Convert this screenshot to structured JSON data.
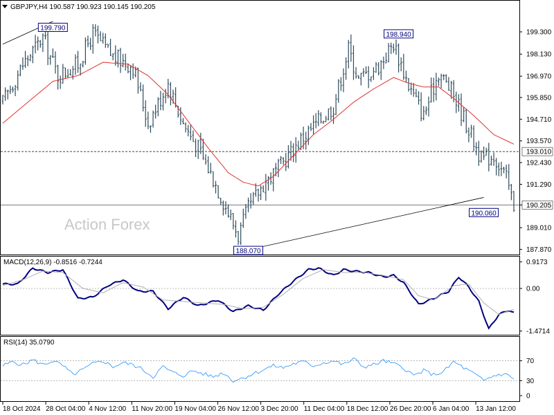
{
  "header": {
    "main": "GBPJPY,H4  190.587 190.923 190.145 190.205",
    "macd": "MACD(12,26,9) -0.8516 -0.7244",
    "rsi": "RSI(14) 35.0790"
  },
  "watermark": "Action Forex",
  "colors": {
    "candles": "#2e4a5a",
    "ma": "#e03030",
    "macd": "#000080",
    "signal": "#b0b0b0",
    "rsi": "#1e90ff",
    "tag_border": "#000080",
    "tag_text": "#000080",
    "grid": "#000000",
    "trendline": "#000000"
  },
  "chart_data": [
    {
      "type": "candlestick",
      "title": "GBPJPY,H4",
      "ylim": [
        187.6,
        200.9
      ],
      "y_ticks": [
        "199.300",
        "198.130",
        "196.970",
        "195.850",
        "194.710",
        "193.570",
        "192.430",
        "191.290",
        "190.205",
        "189.010",
        "187.870"
      ],
      "x_ticks": [
        "18 Oct 2024",
        "28 Oct 04:00",
        "4 Nov 12:00",
        "11 Nov 20:00",
        "19 Nov 04:00",
        "26 Nov 12:00",
        "3 Dec 20:00",
        "11 Dec 04:00",
        "18 Dec 12:00",
        "26 Dec 20:00",
        "6 Jan 04:00",
        "13 Jan 12:00"
      ],
      "close_trend": [
        [
          0,
          195.6
        ],
        [
          8,
          197.6
        ],
        [
          16,
          199.0
        ],
        [
          22,
          197.0
        ],
        [
          30,
          197.6
        ],
        [
          36,
          199.2
        ],
        [
          44,
          198.0
        ],
        [
          52,
          197.5
        ],
        [
          58,
          194.5
        ],
        [
          66,
          196.6
        ],
        [
          72,
          194.5
        ],
        [
          78,
          193.2
        ],
        [
          84,
          191.6
        ],
        [
          90,
          189.8
        ],
        [
          94,
          188.6
        ],
        [
          98,
          190.0
        ],
        [
          104,
          191.3
        ],
        [
          110,
          192.1
        ],
        [
          118,
          193.5
        ],
        [
          126,
          194.6
        ],
        [
          132,
          195.4
        ],
        [
          138,
          198.4
        ],
        [
          142,
          196.8
        ],
        [
          150,
          197.5
        ],
        [
          156,
          198.7
        ],
        [
          162,
          196.5
        ],
        [
          168,
          194.9
        ],
        [
          174,
          197.2
        ],
        [
          180,
          196.0
        ],
        [
          186,
          194.2
        ],
        [
          191,
          192.6
        ],
        [
          196,
          192.8
        ],
        [
          201,
          191.6
        ],
        [
          204,
          190.2
        ]
      ],
      "ma_series": {
        "name": "",
        "points": [
          [
            0,
            194.5
          ],
          [
            10,
            195.6
          ],
          [
            20,
            196.7
          ],
          [
            30,
            197.0
          ],
          [
            40,
            197.7
          ],
          [
            50,
            197.6
          ],
          [
            58,
            197.0
          ],
          [
            66,
            196.0
          ],
          [
            74,
            194.6
          ],
          [
            82,
            193.2
          ],
          [
            90,
            191.9
          ],
          [
            96,
            191.4
          ],
          [
            102,
            191.2
          ],
          [
            108,
            191.7
          ],
          [
            116,
            192.8
          ],
          [
            124,
            193.9
          ],
          [
            132,
            194.7
          ],
          [
            140,
            195.6
          ],
          [
            148,
            196.3
          ],
          [
            156,
            196.9
          ],
          [
            162,
            196.6
          ],
          [
            168,
            196.4
          ],
          [
            174,
            196.4
          ],
          [
            180,
            195.8
          ],
          [
            188,
            194.9
          ],
          [
            196,
            193.9
          ],
          [
            204,
            193.4
          ]
        ]
      },
      "horizontal_lines": [
        {
          "value": 193.01,
          "label": "193.010",
          "style": "dashed"
        },
        {
          "value": 190.205,
          "label": "190.205",
          "style": "solid"
        }
      ],
      "trendlines": [
        {
          "from": [
            0,
            198.65
          ],
          "to": [
            20,
            199.85
          ]
        },
        {
          "from": [
            98,
            187.85
          ],
          "to": [
            192,
            190.6
          ]
        }
      ],
      "annotations": [
        {
          "x": 20,
          "y": 199.79,
          "label": "199.790",
          "anchor": "below"
        },
        {
          "x": 98,
          "y": 188.07,
          "label": "188.070",
          "anchor": "below"
        },
        {
          "x": 158,
          "y": 198.94,
          "label": "198.940",
          "anchor": "above"
        },
        {
          "x": 192,
          "y": 190.06,
          "label": "190.060",
          "anchor": "below"
        }
      ]
    },
    {
      "type": "line",
      "title": "MACD(12,26,9) -0.8516 -0.7244",
      "ylim": [
        -1.6,
        1.1
      ],
      "y_ticks": [
        {
          "value": 0.9173,
          "label": "0.9173"
        },
        {
          "value": 0.0,
          "label": "0.00"
        },
        {
          "value": -1.4714,
          "label": "-1.4714"
        }
      ],
      "series": [
        {
          "name": "MACD",
          "points": [
            [
              0,
              0.15
            ],
            [
              6,
              0.15
            ],
            [
              12,
              0.7
            ],
            [
              18,
              0.55
            ],
            [
              24,
              0.65
            ],
            [
              30,
              -0.35
            ],
            [
              36,
              -0.3
            ],
            [
              42,
              0.1
            ],
            [
              48,
              0.3
            ],
            [
              54,
              -0.1
            ],
            [
              60,
              -0.1
            ],
            [
              66,
              -0.7
            ],
            [
              72,
              -0.3
            ],
            [
              78,
              -0.6
            ],
            [
              86,
              -0.4
            ],
            [
              92,
              -0.8
            ],
            [
              98,
              -0.6
            ],
            [
              104,
              -0.75
            ],
            [
              110,
              -0.2
            ],
            [
              116,
              0.25
            ],
            [
              122,
              0.65
            ],
            [
              126,
              0.7
            ],
            [
              132,
              0.45
            ],
            [
              136,
              0.65
            ],
            [
              140,
              0.6
            ],
            [
              146,
              0.55
            ],
            [
              152,
              0.4
            ],
            [
              156,
              0.45
            ],
            [
              160,
              0.2
            ],
            [
              166,
              -0.55
            ],
            [
              172,
              -0.35
            ],
            [
              178,
              -0.1
            ],
            [
              182,
              0.4
            ],
            [
              186,
              0.05
            ],
            [
              190,
              -0.45
            ],
            [
              194,
              -1.4
            ],
            [
              198,
              -0.9
            ],
            [
              202,
              -0.75
            ],
            [
              204,
              -0.85
            ]
          ]
        },
        {
          "name": "Signal",
          "points": [
            [
              0,
              0.1
            ],
            [
              8,
              0.3
            ],
            [
              16,
              0.6
            ],
            [
              24,
              0.55
            ],
            [
              32,
              0.0
            ],
            [
              40,
              -0.15
            ],
            [
              48,
              0.2
            ],
            [
              56,
              0.05
            ],
            [
              64,
              -0.4
            ],
            [
              72,
              -0.45
            ],
            [
              80,
              -0.5
            ],
            [
              88,
              -0.55
            ],
            [
              96,
              -0.7
            ],
            [
              104,
              -0.65
            ],
            [
              112,
              -0.2
            ],
            [
              120,
              0.35
            ],
            [
              128,
              0.65
            ],
            [
              136,
              0.55
            ],
            [
              144,
              0.55
            ],
            [
              152,
              0.45
            ],
            [
              160,
              0.3
            ],
            [
              166,
              -0.25
            ],
            [
              172,
              -0.4
            ],
            [
              180,
              0.1
            ],
            [
              186,
              0.15
            ],
            [
              192,
              -0.5
            ],
            [
              198,
              -0.9
            ],
            [
              204,
              -0.72
            ]
          ]
        }
      ]
    },
    {
      "type": "line",
      "title": "RSI(14) 35.0790",
      "ylim": [
        0,
        100
      ],
      "y_ticks": [
        {
          "value": 70,
          "label": "70",
          "dotted": true
        },
        {
          "value": 30,
          "label": "30",
          "dotted": true
        },
        {
          "value": 0,
          "label": "0",
          "dotted": false
        }
      ],
      "series": [
        {
          "name": "RSI",
          "points": [
            [
              0,
              60
            ],
            [
              4,
              68
            ],
            [
              8,
              62
            ],
            [
              12,
              72
            ],
            [
              16,
              62
            ],
            [
              20,
              70
            ],
            [
              24,
              60
            ],
            [
              28,
              42
            ],
            [
              32,
              52
            ],
            [
              36,
              64
            ],
            [
              40,
              70
            ],
            [
              44,
              58
            ],
            [
              48,
              66
            ],
            [
              52,
              62
            ],
            [
              56,
              52
            ],
            [
              60,
              38
            ],
            [
              64,
              58
            ],
            [
              68,
              46
            ],
            [
              72,
              40
            ],
            [
              76,
              50
            ],
            [
              80,
              44
            ],
            [
              84,
              38
            ],
            [
              88,
              46
            ],
            [
              92,
              30
            ],
            [
              96,
              36
            ],
            [
              100,
              44
            ],
            [
              104,
              52
            ],
            [
              108,
              60
            ],
            [
              112,
              56
            ],
            [
              116,
              64
            ],
            [
              120,
              68
            ],
            [
              124,
              60
            ],
            [
              128,
              66
            ],
            [
              132,
              70
            ],
            [
              136,
              62
            ],
            [
              140,
              74
            ],
            [
              144,
              58
            ],
            [
              148,
              62
            ],
            [
              152,
              70
            ],
            [
              156,
              64
            ],
            [
              160,
              56
            ],
            [
              164,
              40
            ],
            [
              168,
              50
            ],
            [
              172,
              42
            ],
            [
              176,
              48
            ],
            [
              180,
              68
            ],
            [
              184,
              56
            ],
            [
              188,
              44
            ],
            [
              192,
              30
            ],
            [
              196,
              40
            ],
            [
              200,
              44
            ],
            [
              204,
              35
            ]
          ]
        }
      ]
    }
  ]
}
